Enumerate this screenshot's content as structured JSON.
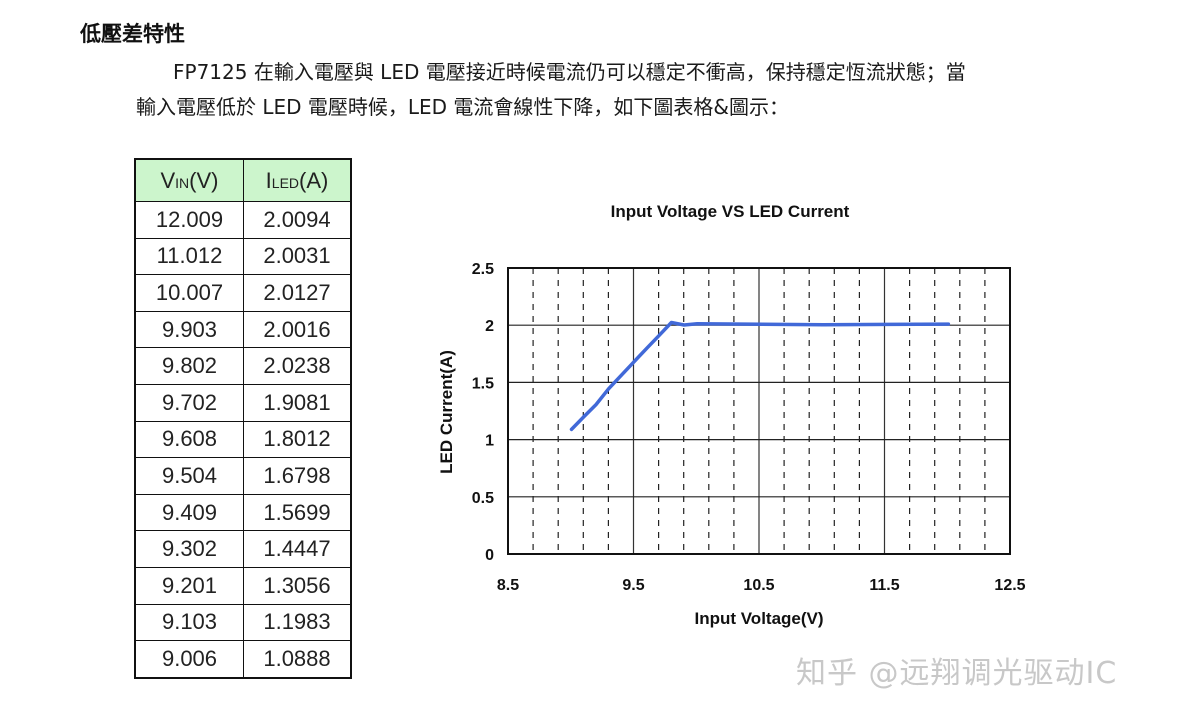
{
  "heading": "低壓差特性",
  "paragraph": {
    "line1": "FP7125 在輸入電壓與 LED 電壓接近時候電流仍可以穩定不衝高，保持穩定恆流狀態；當",
    "line2": "輸入電壓低於 LED 電壓時候，LED 電流會線性下降，如下圖表格&圖示："
  },
  "table": {
    "headers": [
      {
        "main": "V",
        "sub": "IN",
        "unit": "(V)"
      },
      {
        "main": "I",
        "sub": "LED",
        "unit": "(A)"
      }
    ],
    "header_bg": "#ccf5cc",
    "rows": [
      [
        "12.009",
        "2.0094"
      ],
      [
        "11.012",
        "2.0031"
      ],
      [
        "10.007",
        "2.0127"
      ],
      [
        "9.903",
        "2.0016"
      ],
      [
        "9.802",
        "2.0238"
      ],
      [
        "9.702",
        "1.9081"
      ],
      [
        "9.608",
        "1.8012"
      ],
      [
        "9.504",
        "1.6798"
      ],
      [
        "9.409",
        "1.5699"
      ],
      [
        "9.302",
        "1.4447"
      ],
      [
        "9.201",
        "1.3056"
      ],
      [
        "9.103",
        "1.1983"
      ],
      [
        "9.006",
        "1.0888"
      ]
    ]
  },
  "chart_data": {
    "type": "line",
    "title": "Input Voltage VS LED Current",
    "xlabel": "Input Voltage(V)",
    "ylabel": "LED Current(A)",
    "xlim": [
      8.5,
      12.5
    ],
    "ylim": [
      0,
      2.5
    ],
    "xticks": [
      "8.5",
      "9.5",
      "10.5",
      "11.5",
      "12.5"
    ],
    "yticks": [
      "0",
      "0.5",
      "1",
      "1.5",
      "2",
      "2.5"
    ],
    "grid": true,
    "line_color": "#4169d8",
    "series": [
      {
        "name": "LED Current",
        "x": [
          9.006,
          9.103,
          9.201,
          9.302,
          9.409,
          9.504,
          9.608,
          9.702,
          9.802,
          9.903,
          10.007,
          11.012,
          12.009
        ],
        "y": [
          1.0888,
          1.1983,
          1.3056,
          1.4447,
          1.5699,
          1.6798,
          1.8012,
          1.9081,
          2.0238,
          2.0016,
          2.0127,
          2.0031,
          2.0094
        ]
      }
    ]
  },
  "watermark": "知乎 @远翔调光驱动IC"
}
